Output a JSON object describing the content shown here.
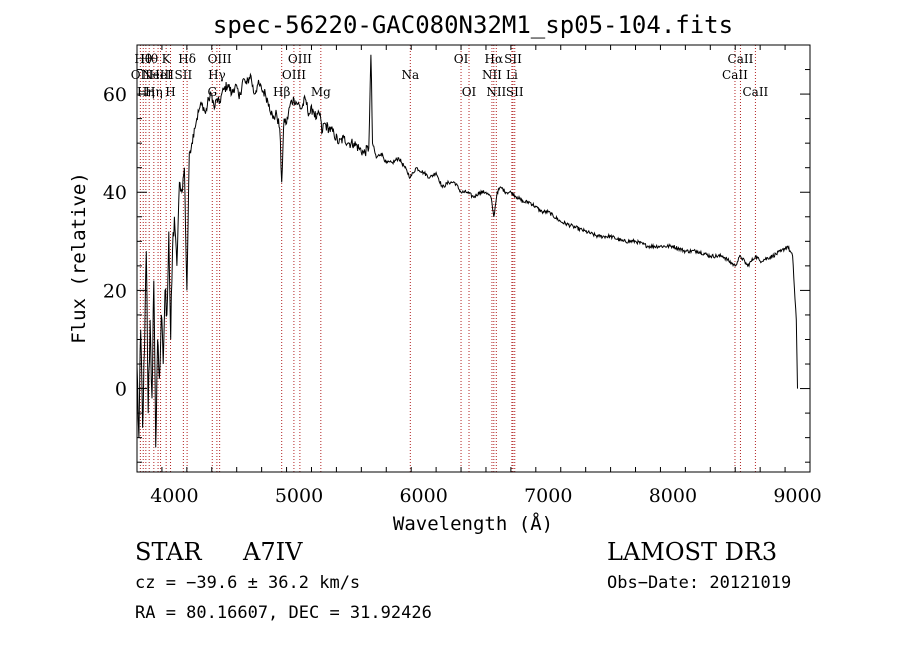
{
  "chart_data": {
    "type": "line",
    "title": "spec-56220-GAC080N32M1_sp05-104.fits",
    "xlabel": "Wavelength (Å)",
    "ylabel": "Flux (relative)",
    "xlim": [
      3700,
      9100
    ],
    "ylim": [
      -17,
      70
    ],
    "xticks": [
      4000,
      5000,
      6000,
      7000,
      8000,
      9000
    ],
    "yticks": [
      0,
      20,
      40,
      60
    ],
    "grid": false,
    "series": [
      {
        "name": "flux",
        "x": [
          3700,
          3715,
          3730,
          3745,
          3760,
          3775,
          3790,
          3805,
          3820,
          3835,
          3850,
          3865,
          3880,
          3895,
          3910,
          3925,
          3940,
          3955,
          3970,
          3985,
          4000,
          4020,
          4040,
          4060,
          4080,
          4100,
          4120,
          4140,
          4160,
          4180,
          4200,
          4225,
          4250,
          4275,
          4300,
          4320,
          4340,
          4360,
          4380,
          4400,
          4430,
          4460,
          4490,
          4520,
          4550,
          4580,
          4610,
          4640,
          4670,
          4700,
          4730,
          4760,
          4790,
          4820,
          4845,
          4861,
          4880,
          4900,
          4930,
          4960,
          4990,
          5020,
          5050,
          5080,
          5110,
          5140,
          5170,
          5183,
          5200,
          5240,
          5280,
          5320,
          5360,
          5400,
          5440,
          5480,
          5520,
          5560,
          5577,
          5590,
          5620,
          5660,
          5700,
          5750,
          5800,
          5850,
          5893,
          5940,
          6000,
          6050,
          6100,
          6150,
          6200,
          6250,
          6300,
          6350,
          6400,
          6450,
          6500,
          6540,
          6563,
          6590,
          6620,
          6660,
          6700,
          6750,
          6800,
          6850,
          6900,
          6950,
          7000,
          7100,
          7200,
          7300,
          7400,
          7500,
          7600,
          7700,
          7800,
          7900,
          8000,
          8100,
          8200,
          8300,
          8400,
          8498,
          8542,
          8600,
          8662,
          8700,
          8800,
          8870,
          8920,
          8960,
          8990,
          9000
        ],
        "y": [
          5,
          -10,
          12,
          -8,
          8,
          28,
          -5,
          14,
          -2,
          22,
          -12,
          10,
          2,
          15,
          5,
          20,
          15,
          32,
          10,
          28,
          35,
          25,
          42,
          40,
          45,
          20,
          48,
          50,
          53,
          55,
          57,
          58,
          56,
          59,
          60,
          57,
          59,
          58,
          60,
          61,
          62,
          60,
          62,
          59,
          63,
          62,
          64,
          60,
          62,
          61,
          60,
          58,
          55,
          56,
          53,
          42,
          55,
          54,
          58,
          59,
          58,
          57,
          59,
          56,
          57,
          55,
          56,
          52,
          54,
          53,
          52,
          50,
          51,
          50,
          50,
          49,
          48,
          49,
          68,
          50,
          47,
          48,
          46,
          46,
          47,
          45,
          43,
          45,
          44,
          43,
          44,
          41,
          42,
          42,
          40,
          40,
          39,
          40,
          40,
          39,
          35,
          40,
          41,
          40,
          40,
          39,
          38,
          38,
          37,
          36,
          36,
          34,
          33,
          32,
          31,
          31,
          30,
          30,
          29,
          29,
          29,
          28,
          28,
          27,
          27,
          25,
          27,
          25,
          27,
          26,
          27,
          28,
          29,
          27,
          14,
          0
        ]
      }
    ],
    "lines": [
      {
        "wave": 3727,
        "label": "OII",
        "row": 2
      },
      {
        "wave": 3750,
        "label": "Hθ",
        "row": 1
      },
      {
        "wave": 3771,
        "label": "Hη",
        "row": 3
      },
      {
        "wave": 3798,
        "label": "Hθ",
        "row": 1
      },
      {
        "wave": 3835,
        "label": "Hη",
        "row": 3
      },
      {
        "wave": 3869,
        "label": "NeIII",
        "row": 2
      },
      {
        "wave": 3889,
        "label": "HeI",
        "row": 2
      },
      {
        "wave": 3934,
        "label": "K",
        "row": 1
      },
      {
        "wave": 3969,
        "label": "H",
        "row": 3
      },
      {
        "wave": 4072,
        "label": "SII",
        "row": 2
      },
      {
        "wave": 4102,
        "label": "Hδ",
        "row": 1
      },
      {
        "wave": 4304,
        "label": "G",
        "row": 3
      },
      {
        "wave": 4341,
        "label": "Hγ",
        "row": 2
      },
      {
        "wave": 4363,
        "label": "OIII",
        "row": 1
      },
      {
        "wave": 4861,
        "label": "Hβ",
        "row": 3
      },
      {
        "wave": 4959,
        "label": "OIII",
        "row": 2
      },
      {
        "wave": 5007,
        "label": "OIII",
        "row": 1
      },
      {
        "wave": 5175,
        "label": "Mg",
        "row": 3
      },
      {
        "wave": 5893,
        "label": "Na",
        "row": 2
      },
      {
        "wave": 6300,
        "label": "OI",
        "row": 1
      },
      {
        "wave": 6364,
        "label": "OI",
        "row": 3
      },
      {
        "wave": 6548,
        "label": "NII",
        "row": 2
      },
      {
        "wave": 6563,
        "label": "Hα",
        "row": 1
      },
      {
        "wave": 6583,
        "label": "NII",
        "row": 3
      },
      {
        "wave": 6708,
        "label": "Li",
        "row": 2
      },
      {
        "wave": 6717,
        "label": "SII",
        "row": 1
      },
      {
        "wave": 6731,
        "label": "SII",
        "row": 3
      },
      {
        "wave": 8498,
        "label": "CaII",
        "row": 2
      },
      {
        "wave": 8542,
        "label": "CaII",
        "row": 1
      },
      {
        "wave": 8662,
        "label": "CaII",
        "row": 3
      }
    ]
  },
  "info": {
    "object_class": "STAR",
    "subclass": "A7IV",
    "cz": "cz = −39.6 ± 36.2 km/s",
    "coords": "RA =  80.16607, DEC =  31.92426",
    "survey": "LAMOST DR3",
    "obs_date": "Obs−Date: 20121019"
  }
}
